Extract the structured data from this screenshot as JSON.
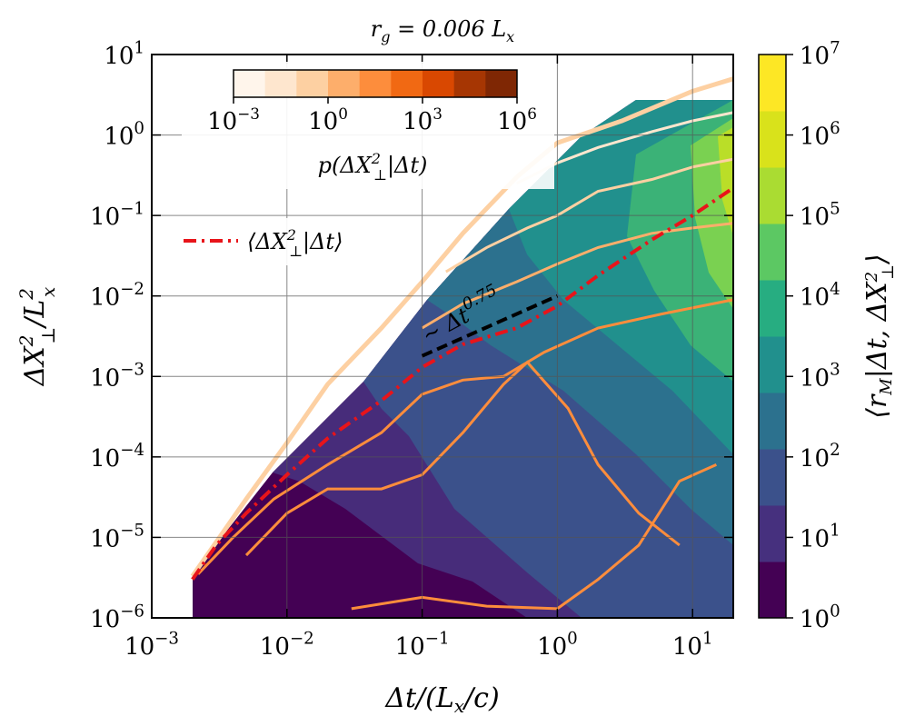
{
  "chart_data": {
    "type": "heatmap",
    "title": "r_g = 0.006 L_x",
    "xlabel": "Δt/(L_x/c)",
    "ylabel": "ΔX⊥²/L_x²",
    "xscale": "log",
    "yscale": "log",
    "xlim": [
      0.001,
      20
    ],
    "ylim": [
      1e-06,
      10
    ],
    "x_ticks": [
      {
        "value": 0.001,
        "base": "10",
        "exp": "−3"
      },
      {
        "value": 0.01,
        "base": "10",
        "exp": "−2"
      },
      {
        "value": 0.1,
        "base": "10",
        "exp": "−1"
      },
      {
        "value": 1,
        "base": "10",
        "exp": "0"
      },
      {
        "value": 10,
        "base": "10",
        "exp": "1"
      }
    ],
    "y_ticks": [
      {
        "value": 1e-06,
        "base": "10",
        "exp": "−6"
      },
      {
        "value": 1e-05,
        "base": "10",
        "exp": "−5"
      },
      {
        "value": 0.0001,
        "base": "10",
        "exp": "−4"
      },
      {
        "value": 0.001,
        "base": "10",
        "exp": "−3"
      },
      {
        "value": 0.01,
        "base": "10",
        "exp": "−2"
      },
      {
        "value": 0.1,
        "base": "10",
        "exp": "−1"
      },
      {
        "value": 1,
        "base": "10",
        "exp": "0"
      },
      {
        "value": 10,
        "base": "10",
        "exp": "1"
      }
    ],
    "grid": true,
    "colorbar": {
      "label": "⟨r_M | Δt, ΔX⊥²⟩",
      "scale": "log",
      "range": [
        1,
        10000000
      ],
      "ticks": [
        {
          "value": 1,
          "base": "10",
          "exp": "0"
        },
        {
          "value": 10,
          "base": "10",
          "exp": "1"
        },
        {
          "value": 100,
          "base": "10",
          "exp": "2"
        },
        {
          "value": 1000,
          "base": "10",
          "exp": "3"
        },
        {
          "value": 10000,
          "base": "10",
          "exp": "4"
        },
        {
          "value": 100000,
          "base": "10",
          "exp": "5"
        },
        {
          "value": 1000000,
          "base": "10",
          "exp": "6"
        },
        {
          "value": 10000000,
          "base": "10",
          "exp": "7"
        }
      ],
      "colors": [
        "#440154",
        "#46307e",
        "#3b518b",
        "#2c718e",
        "#21908d",
        "#27ad81",
        "#5cc863",
        "#aadc32",
        "#d9e21b",
        "#fde725"
      ]
    },
    "inset_colorbar": {
      "label": "p(ΔX⊥²|Δt)",
      "scale": "log",
      "range": [
        0.001,
        1000000
      ],
      "ticks": [
        {
          "value": 0.001,
          "base": "10",
          "exp": "−3"
        },
        {
          "value": 1,
          "base": "10",
          "exp": "0"
        },
        {
          "value": 1000,
          "base": "10",
          "exp": "3"
        },
        {
          "value": 1000000,
          "base": "10",
          "exp": "6"
        }
      ],
      "colors": [
        "#fff5eb",
        "#fee6ce",
        "#fdd0a2",
        "#fdae6b",
        "#fd8d3c",
        "#f16913",
        "#d94801",
        "#a63603",
        "#7f2704"
      ]
    },
    "series": [
      {
        "name": "⟨ΔX⊥²|Δt⟩",
        "style": "dash-dot",
        "color": "#e8141a",
        "x": [
          0.002,
          0.003,
          0.005,
          0.01,
          0.02,
          0.05,
          0.1,
          0.2,
          0.5,
          1.0,
          2.0,
          5.0,
          10,
          20
        ],
        "y": [
          3e-06,
          8e-06,
          2e-05,
          6e-05,
          0.00017,
          0.0005,
          0.0013,
          0.0025,
          0.004,
          0.0075,
          0.018,
          0.05,
          0.1,
          0.22
        ]
      },
      {
        "name": "~ Δt^0.75",
        "style": "dashed",
        "color": "#000000",
        "x": [
          0.1,
          1.0
        ],
        "y": [
          0.0018,
          0.01
        ]
      }
    ],
    "annotations": [
      {
        "text": "~ Δt",
        "sup": "0.75"
      }
    ]
  }
}
